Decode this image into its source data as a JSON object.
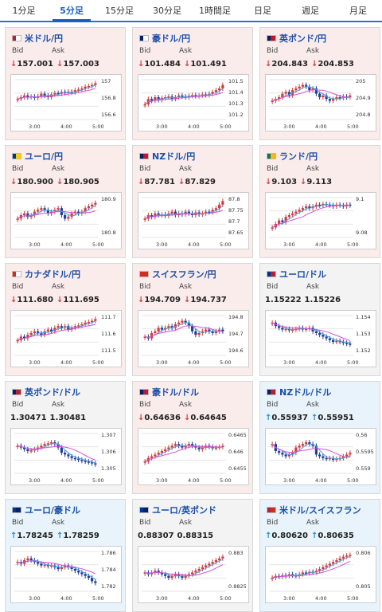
{
  "tabs": [
    "1分足",
    "5分足",
    "15分足",
    "30分足",
    "1時間足",
    "日足",
    "週足",
    "月足"
  ],
  "active_tab": 1,
  "bid_label": "Bid",
  "ask_label": "Ask",
  "cards": [
    {
      "title": "米ドル/円",
      "trend": "down",
      "bid": "157.001",
      "ask": "157.003",
      "yticks": [
        "157",
        "156.8",
        "156.6"
      ],
      "xticks": [
        "3:00",
        "4:00",
        "5:00"
      ],
      "flag": [
        "#b22234",
        "#fff"
      ],
      "chart_data": {
        "type": "candlestick",
        "series": [
          0.55,
          0.5,
          0.45,
          0.5,
          0.48,
          0.52,
          0.47,
          0.4,
          0.45,
          0.5,
          0.42,
          0.38,
          0.4,
          0.35,
          0.38,
          0.34,
          0.36,
          0.3,
          0.28,
          0.25,
          0.2,
          0.18,
          0.15,
          0.1
        ]
      }
    },
    {
      "title": "豪ドル/円",
      "trend": "down",
      "bid": "101.484",
      "ask": "101.491",
      "yticks": [
        "101.5",
        "101.4",
        "101.3",
        "101.2"
      ],
      "xticks": [
        "3:00",
        "4:00",
        "5:00"
      ],
      "flag": [
        "#012169",
        "#fff"
      ],
      "chart_data": {
        "type": "candlestick",
        "series": [
          0.7,
          0.55,
          0.6,
          0.5,
          0.58,
          0.52,
          0.5,
          0.48,
          0.55,
          0.5,
          0.45,
          0.48,
          0.5,
          0.46,
          0.44,
          0.47,
          0.45,
          0.42,
          0.44,
          0.4,
          0.35,
          0.3,
          0.25,
          0.15
        ]
      }
    },
    {
      "title": "英ポンド/円",
      "trend": "down",
      "bid": "204.843",
      "ask": "204.853",
      "yticks": [
        "205",
        "204.9",
        "204.8"
      ],
      "xticks": [
        "3:00",
        "4:00",
        "5:00"
      ],
      "flag": [
        "#012169",
        "#c8102e"
      ],
      "chart_data": {
        "type": "candlestick",
        "series": [
          0.6,
          0.55,
          0.5,
          0.4,
          0.35,
          0.45,
          0.3,
          0.25,
          0.2,
          0.15,
          0.2,
          0.3,
          0.25,
          0.4,
          0.5,
          0.45,
          0.55,
          0.6,
          0.55,
          0.5,
          0.52,
          0.48,
          0.5,
          0.45
        ]
      }
    },
    {
      "title": "ユーロ/円",
      "trend": "down",
      "bid": "180.900",
      "ask": "180.905",
      "yticks": [
        "180.9",
        "180.8"
      ],
      "xticks": [
        "3:00",
        "4:00",
        "5:00"
      ],
      "flag": [
        "#003399",
        "#ffcc00"
      ],
      "chart_data": {
        "type": "candlestick",
        "series": [
          0.6,
          0.5,
          0.45,
          0.55,
          0.5,
          0.4,
          0.35,
          0.3,
          0.35,
          0.45,
          0.4,
          0.35,
          0.3,
          0.5,
          0.6,
          0.55,
          0.45,
          0.4,
          0.45,
          0.4,
          0.3,
          0.25,
          0.2,
          0.15
        ]
      }
    },
    {
      "title": "NZドル/円",
      "trend": "down",
      "bid": "87.781",
      "ask": "87.829",
      "yticks": [
        "87.8",
        "87.75",
        "87.7",
        "87.65"
      ],
      "xticks": [
        "3:00",
        "4:00",
        "5:00"
      ],
      "flag": [
        "#012169",
        "#c8102e"
      ],
      "chart_data": {
        "type": "candlestick",
        "series": [
          0.6,
          0.5,
          0.55,
          0.45,
          0.5,
          0.48,
          0.52,
          0.45,
          0.4,
          0.5,
          0.45,
          0.48,
          0.4,
          0.45,
          0.5,
          0.42,
          0.48,
          0.45,
          0.4,
          0.42,
          0.35,
          0.3,
          0.2,
          0.1
        ]
      }
    },
    {
      "title": "ランド/円",
      "trend": "down",
      "bid": "9.103",
      "ask": "9.113",
      "yticks": [
        "9.1",
        "9.08"
      ],
      "xticks": [
        "3:00",
        "4:00",
        "5:00"
      ],
      "flag": [
        "#007a4d",
        "#ffb612"
      ],
      "chart_data": {
        "type": "candlestick",
        "series": [
          0.85,
          0.75,
          0.65,
          0.7,
          0.55,
          0.5,
          0.45,
          0.4,
          0.35,
          0.3,
          0.25,
          0.3,
          0.25,
          0.2,
          0.22,
          0.18,
          0.2,
          0.22,
          0.25,
          0.2,
          0.22,
          0.25,
          0.2,
          0.22
        ]
      }
    },
    {
      "title": "カナダドル/円",
      "trend": "down",
      "bid": "111.680",
      "ask": "111.695",
      "yticks": [
        "111.7",
        "111.6",
        "111.5"
      ],
      "xticks": [
        "3:00",
        "4:00",
        "5:00"
      ],
      "flag": [
        "#d52b1e",
        "#fff"
      ],
      "chart_data": {
        "type": "candlestick",
        "series": [
          0.7,
          0.6,
          0.65,
          0.55,
          0.5,
          0.45,
          0.5,
          0.55,
          0.45,
          0.4,
          0.45,
          0.35,
          0.3,
          0.35,
          0.3,
          0.4,
          0.35,
          0.3,
          0.28,
          0.25,
          0.2,
          0.18,
          0.15,
          0.1
        ]
      }
    },
    {
      "title": "スイスフラン/円",
      "trend": "down",
      "bid": "194.709",
      "ask": "194.737",
      "yticks": [
        "194.8",
        "194.7",
        "194.6"
      ],
      "xticks": [
        "3:00",
        "4:00",
        "5:00"
      ],
      "flag": [
        "#d52b1e",
        "#d52b1e"
      ],
      "chart_data": {
        "type": "candlestick",
        "series": [
          0.6,
          0.65,
          0.5,
          0.45,
          0.35,
          0.4,
          0.35,
          0.3,
          0.35,
          0.25,
          0.2,
          0.15,
          0.2,
          0.3,
          0.45,
          0.55,
          0.5,
          0.45,
          0.4,
          0.45,
          0.5,
          0.45,
          0.4,
          0.45
        ]
      }
    },
    {
      "title": "ユーロ/ドル",
      "trend": "flat",
      "bid": "1.15222",
      "ask": "1.15226",
      "yticks": [
        "1.154",
        "1.153",
        "1.152"
      ],
      "xticks": [
        "3:00",
        "4:00",
        "5:00"
      ],
      "flag": [
        "#003399",
        "#b22234"
      ],
      "chart_data": {
        "type": "candlestick",
        "series": [
          0.2,
          0.3,
          0.35,
          0.4,
          0.38,
          0.42,
          0.4,
          0.38,
          0.35,
          0.4,
          0.38,
          0.35,
          0.45,
          0.5,
          0.55,
          0.6,
          0.65,
          0.7,
          0.75,
          0.72,
          0.75,
          0.78,
          0.8,
          0.82
        ]
      }
    },
    {
      "title": "英ポンド/ドル",
      "trend": "flat",
      "bid": "1.30471",
      "ask": "1.30481",
      "yticks": [
        "1.307",
        "1.306",
        "1.305"
      ],
      "xticks": [
        "3:00",
        "4:00",
        "5:00"
      ],
      "flag": [
        "#012169",
        "#b22234"
      ],
      "chart_data": {
        "type": "candlestick",
        "series": [
          0.35,
          0.4,
          0.45,
          0.5,
          0.48,
          0.45,
          0.4,
          0.35,
          0.3,
          0.28,
          0.25,
          0.3,
          0.4,
          0.55,
          0.6,
          0.65,
          0.7,
          0.72,
          0.75,
          0.78,
          0.8,
          0.82,
          0.85,
          0.88
        ]
      }
    },
    {
      "title": "豪ドル/ドル",
      "trend": "down",
      "bid": "0.64636",
      "ask": "0.64645",
      "yticks": [
        "0.6465",
        "0.646",
        "0.6455"
      ],
      "xticks": [
        "3:00",
        "4:00",
        "5:00"
      ],
      "flag": [
        "#012169",
        "#b22234"
      ],
      "chart_data": {
        "type": "candlestick",
        "series": [
          0.8,
          0.7,
          0.65,
          0.6,
          0.55,
          0.5,
          0.45,
          0.4,
          0.35,
          0.3,
          0.35,
          0.4,
          0.35,
          0.3,
          0.35,
          0.4,
          0.45,
          0.4,
          0.35,
          0.38,
          0.42,
          0.4,
          0.38,
          0.35
        ]
      }
    },
    {
      "title": "NZドル/ドル",
      "trend": "up",
      "bid": "0.55937",
      "ask": "0.55951",
      "yticks": [
        "0.56",
        "0.5595",
        "0.559"
      ],
      "xticks": [
        "3:00",
        "4:00",
        "5:00"
      ],
      "flag": [
        "#012169",
        "#b22234"
      ],
      "chart_data": {
        "type": "candlestick",
        "series": [
          0.3,
          0.5,
          0.55,
          0.6,
          0.65,
          0.6,
          0.55,
          0.4,
          0.35,
          0.3,
          0.25,
          0.3,
          0.35,
          0.6,
          0.65,
          0.7,
          0.72,
          0.7,
          0.75,
          0.72,
          0.7,
          0.65,
          0.6,
          0.55
        ]
      }
    },
    {
      "title": "ユーロ/豪ドル",
      "trend": "up",
      "bid": "1.78245",
      "ask": "1.78259",
      "yticks": [
        "1.786",
        "1.784",
        "1.782"
      ],
      "xticks": [
        "3:00",
        "4:00",
        "5:00"
      ],
      "flag": [
        "#003399",
        "#012169"
      ],
      "chart_data": {
        "type": "candlestick",
        "series": [
          0.3,
          0.35,
          0.25,
          0.2,
          0.25,
          0.3,
          0.35,
          0.4,
          0.38,
          0.42,
          0.4,
          0.45,
          0.5,
          0.45,
          0.4,
          0.45,
          0.5,
          0.55,
          0.6,
          0.65,
          0.7,
          0.75,
          0.85,
          0.9
        ]
      }
    },
    {
      "title": "ユーロ/英ポンド",
      "trend": "flat",
      "bid": "0.88307",
      "ask": "0.88315",
      "yticks": [
        "0.883",
        "0.8825"
      ],
      "xticks": [
        "3:00",
        "4:00",
        "5:00"
      ],
      "flag": [
        "#003399",
        "#012169"
      ],
      "chart_data": {
        "type": "candlestick",
        "series": [
          0.6,
          0.65,
          0.6,
          0.55,
          0.6,
          0.65,
          0.7,
          0.75,
          0.7,
          0.65,
          0.7,
          0.75,
          0.7,
          0.65,
          0.6,
          0.55,
          0.5,
          0.45,
          0.4,
          0.35,
          0.3,
          0.25,
          0.2,
          0.15
        ]
      }
    },
    {
      "title": "米ドル/スイスフラン",
      "trend": "up",
      "bid": "0.80620",
      "ask": "0.80635",
      "yticks": [
        "0.806",
        "0.805"
      ],
      "xticks": [
        "3:00",
        "4:00",
        "5:00"
      ],
      "flag": [
        "#b22234",
        "#d52b1e"
      ],
      "chart_data": {
        "type": "candlestick",
        "series": [
          0.75,
          0.7,
          0.72,
          0.68,
          0.7,
          0.65,
          0.68,
          0.7,
          0.65,
          0.6,
          0.62,
          0.58,
          0.6,
          0.55,
          0.5,
          0.45,
          0.4,
          0.35,
          0.3,
          0.25,
          0.2,
          0.15,
          0.12,
          0.1
        ]
      }
    }
  ]
}
